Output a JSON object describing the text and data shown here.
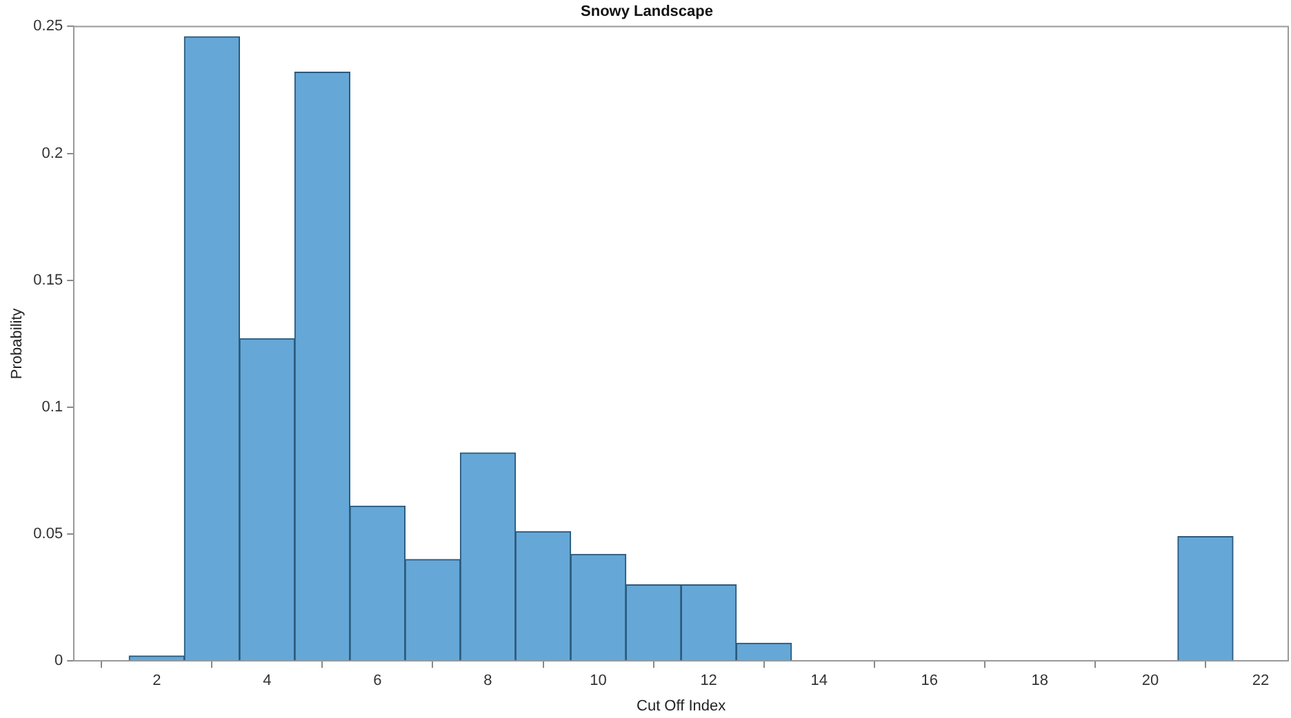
{
  "chart_data": {
    "type": "histogram",
    "title": "Snowy Landscape",
    "xlabel": "Cut Off Index",
    "ylabel": "Probability",
    "bins": [
      1.5,
      2.5,
      3.5,
      4.5,
      5.5,
      6.5,
      7.5,
      8.5,
      9.5,
      10.5,
      11.5,
      12.5,
      13.5,
      14.5,
      15.5,
      16.5,
      17.5,
      18.5,
      19.5,
      20.5,
      21.5
    ],
    "values": [
      0.002,
      0.246,
      0.127,
      0.232,
      0.061,
      0.04,
      0.082,
      0.051,
      0.042,
      0.03,
      0.03,
      0.007,
      0,
      0,
      0,
      0,
      0,
      0,
      0,
      0.049
    ],
    "color": "#65a7d7",
    "xlim": [
      0.5,
      22.5
    ],
    "xticks": [
      2,
      4,
      6,
      8,
      10,
      12,
      14,
      16,
      18,
      20,
      22
    ],
    "ylim": [
      0,
      0.25
    ],
    "yticks": [
      0,
      0.05,
      0.1,
      0.15,
      0.2,
      0.25
    ],
    "grid": false,
    "legend": false
  }
}
